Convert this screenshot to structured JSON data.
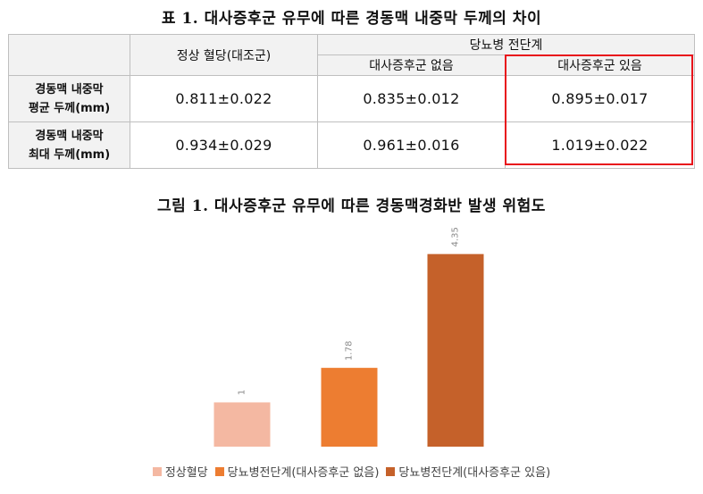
{
  "table": {
    "title": "표 1. 대사증후군 유무에 따른 경동맥 내중막 두께의 차이",
    "header": {
      "normal": "정상 혈당(대조군)",
      "prediabetes": "당뇨병 전단계",
      "no_ms": "대사증후군 없음",
      "with_ms": "대사증후군 있음"
    },
    "rows": [
      {
        "label_line1": "경동맥 내중막",
        "label_line2": "평균 두께(mm)",
        "values": [
          "0.811±0.022",
          "0.835±0.012",
          "0.895±0.017"
        ]
      },
      {
        "label_line1": "경동맥 내중막",
        "label_line2": "최대 두께(mm)",
        "values": [
          "0.934±0.029",
          "0.961±0.016",
          "1.019±0.022"
        ]
      }
    ],
    "highlight_color": "#e8111b"
  },
  "chart_data": {
    "type": "bar",
    "title": "그림 1. 대사증후군 유무에 따른 경동맥경화반 발생 위험도",
    "categories": [
      "정상혈당",
      "당뇨병전단계(대사증후군 없음)",
      "당뇨병전단계(대사증후군 있음)"
    ],
    "values": [
      1,
      1.78,
      4.35
    ],
    "value_labels": [
      "1",
      "1.78",
      "4.35"
    ],
    "colors": [
      "#f4b8a2",
      "#ed7d31",
      "#c5612a"
    ],
    "legend": [
      {
        "label": "정상혈당",
        "color": "#f4b8a2"
      },
      {
        "label": "당뇨병전단계(대사증후군 없음)",
        "color": "#ed7d31"
      },
      {
        "label": "당뇨병전단계(대사증후군 있음)",
        "color": "#c5612a"
      }
    ],
    "legend_position": "bottom",
    "ylim": [
      0,
      4.6
    ],
    "grid": false
  }
}
